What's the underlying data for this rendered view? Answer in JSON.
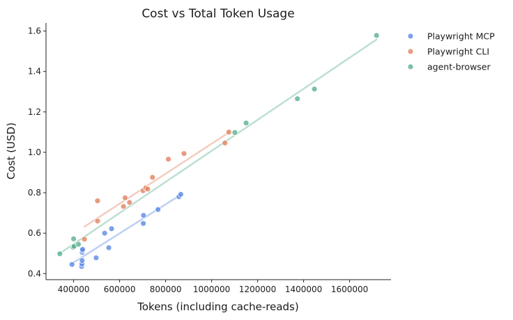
{
  "chart_data": {
    "type": "scatter",
    "title": "Cost vs Total Token Usage",
    "xlabel": "Tokens (including cache-reads)",
    "ylabel": "Cost (USD)",
    "xlim": [
      280000,
      1780000
    ],
    "ylim": [
      0.37,
      1.64
    ],
    "xticks": [
      400000,
      600000,
      800000,
      1000000,
      1200000,
      1400000,
      1600000
    ],
    "xtick_labels": [
      "400000",
      "600000",
      "800000",
      "1000000",
      "1200000",
      "1400000",
      "1600000"
    ],
    "yticks": [
      0.4,
      0.6,
      0.8,
      1.0,
      1.2,
      1.4,
      1.6
    ],
    "ytick_labels": [
      "0.4",
      "0.6",
      "0.8",
      "1.0",
      "1.2",
      "1.4",
      "1.6"
    ],
    "grid": false,
    "legend_position": "upper-right-outside",
    "series": [
      {
        "name": "Playwright MCP",
        "color": "#5b8ae6",
        "points": [
          [
            393000,
            0.445
          ],
          [
            435000,
            0.435
          ],
          [
            436000,
            0.448
          ],
          [
            437000,
            0.465
          ],
          [
            437000,
            0.505
          ],
          [
            438000,
            0.514
          ],
          [
            439000,
            0.52
          ],
          [
            498000,
            0.478
          ],
          [
            535000,
            0.6
          ],
          [
            553000,
            0.528
          ],
          [
            565000,
            0.622
          ],
          [
            703000,
            0.648
          ],
          [
            704000,
            0.688
          ],
          [
            767000,
            0.717
          ],
          [
            858000,
            0.78
          ],
          [
            866000,
            0.792
          ]
        ],
        "trend": [
          [
            393000,
            0.45
          ],
          [
            866000,
            0.79
          ]
        ]
      },
      {
        "name": "Playwright CLI",
        "color": "#e1825f",
        "points": [
          [
            447000,
            0.57
          ],
          [
            504000,
            0.66
          ],
          [
            504000,
            0.76
          ],
          [
            617000,
            0.732
          ],
          [
            624000,
            0.775
          ],
          [
            643000,
            0.752
          ],
          [
            702000,
            0.81
          ],
          [
            714000,
            0.824
          ],
          [
            722000,
            0.818
          ],
          [
            743000,
            0.876
          ],
          [
            812000,
            0.966
          ],
          [
            880000,
            0.994
          ],
          [
            1058000,
            1.046
          ],
          [
            1075000,
            1.1
          ]
        ],
        "trend": [
          [
            447000,
            0.632
          ],
          [
            1075000,
            1.098
          ]
        ]
      },
      {
        "name": "agent-browser",
        "color": "#5bb08f",
        "points": [
          [
            340000,
            0.498
          ],
          [
            398000,
            0.53
          ],
          [
            400000,
            0.572
          ],
          [
            402000,
            0.535
          ],
          [
            421000,
            0.545
          ],
          [
            1101000,
            1.098
          ],
          [
            1150000,
            1.145
          ],
          [
            1373000,
            1.265
          ],
          [
            1447000,
            1.313
          ],
          [
            1717000,
            1.578
          ]
        ],
        "trend": [
          [
            340000,
            0.5
          ],
          [
            1717000,
            1.558
          ]
        ]
      }
    ]
  }
}
